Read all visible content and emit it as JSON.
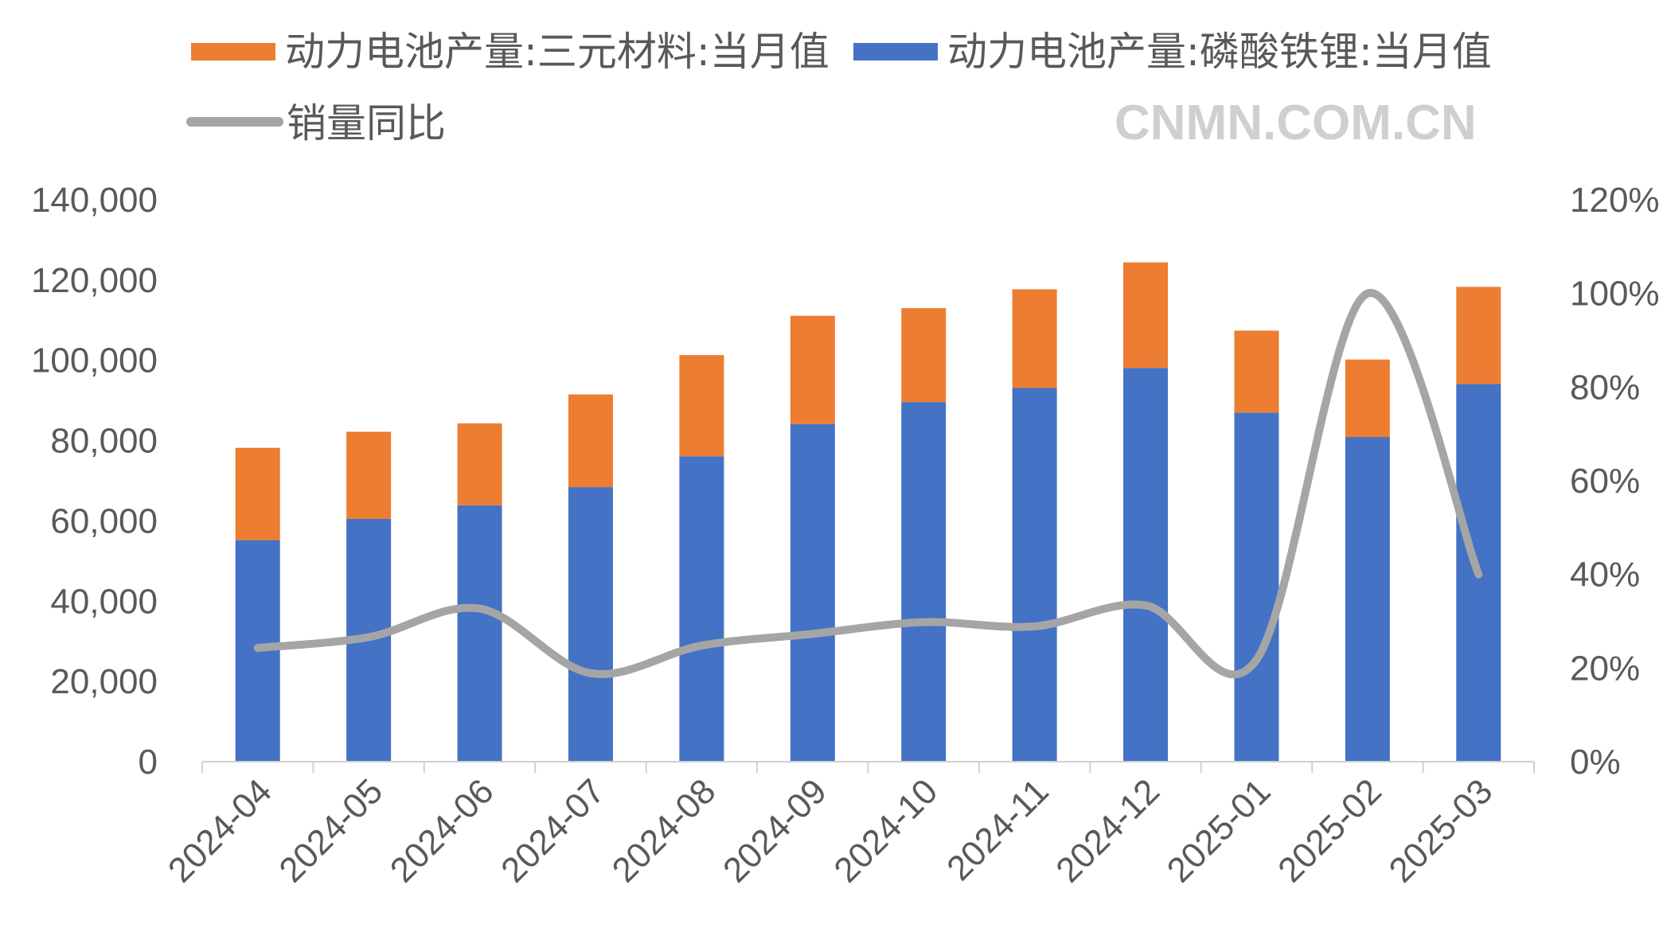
{
  "chart_data": {
    "type": "bar",
    "stacked": true,
    "categories": [
      "2024-04",
      "2024-05",
      "2024-06",
      "2024-07",
      "2024-08",
      "2024-09",
      "2024-10",
      "2024-11",
      "2024-12",
      "2025-01",
      "2025-02",
      "2025-03"
    ],
    "series": [
      {
        "name": "动力电池产量:磷酸铁锂:当月值",
        "type": "bar",
        "axis": "left",
        "color": "#4472C4",
        "values": [
          55200,
          60500,
          63900,
          68400,
          76100,
          84100,
          89600,
          93100,
          98100,
          87000,
          80900,
          94100
        ]
      },
      {
        "name": "动力电池产量:三元材料:当月值",
        "type": "bar",
        "axis": "left",
        "color": "#ED7D31",
        "values": [
          23000,
          21700,
          20400,
          23100,
          25200,
          27000,
          23400,
          24600,
          26300,
          20400,
          19300,
          24200
        ]
      },
      {
        "name": "销量同比",
        "type": "line",
        "axis": "right",
        "color": "#A5A5A5",
        "values": [
          24.3,
          26.6,
          32.7,
          18.9,
          24.8,
          27.3,
          29.8,
          28.9,
          33.4,
          21.8,
          100,
          40
        ]
      }
    ],
    "left_axis": {
      "min": 0,
      "max": 140000,
      "ticks": [
        "0",
        "20,000",
        "40,000",
        "60,000",
        "80,000",
        "100,000",
        "120,000",
        "140,000"
      ]
    },
    "right_axis": {
      "min": 0,
      "max": 120,
      "ticks": [
        "0%",
        "20%",
        "40%",
        "60%",
        "80%",
        "100%",
        "120%"
      ]
    },
    "legend": {
      "position": "top",
      "items": [
        "动力电池产量:三元材料:当月值",
        "动力电池产量:磷酸铁锂:当月值",
        "销量同比"
      ]
    },
    "grid": false,
    "watermark": "CNMN.COM.CN"
  }
}
